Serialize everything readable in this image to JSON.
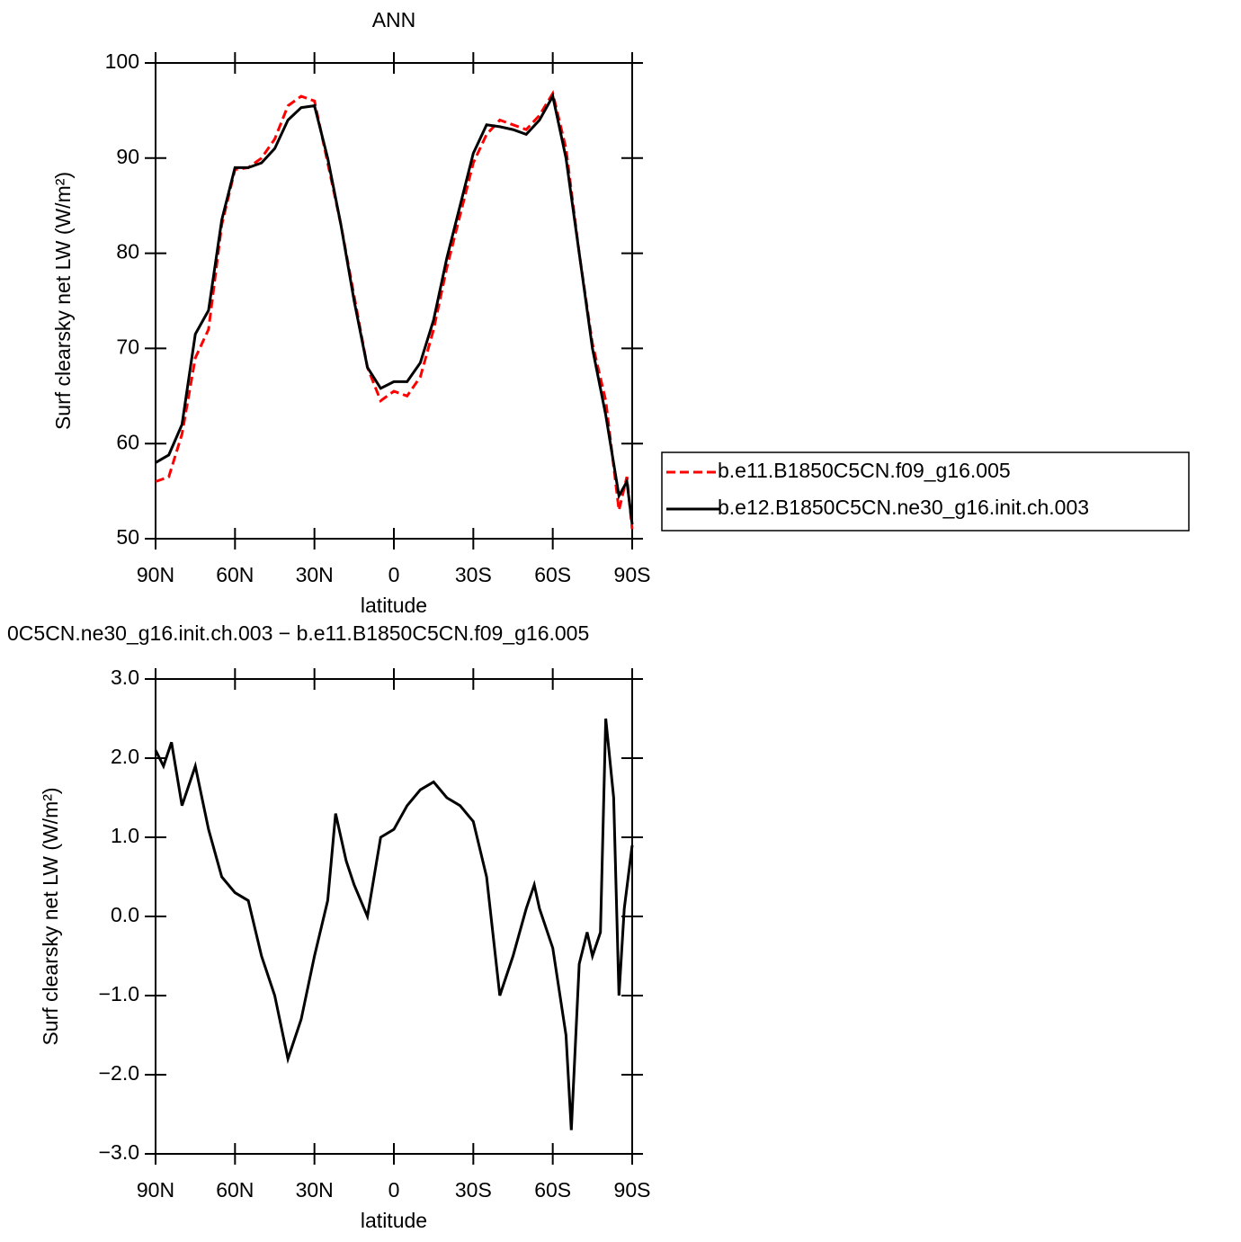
{
  "chart_data": [
    {
      "type": "line",
      "title": "ANN",
      "xlabel": "latitude",
      "ylabel": "Surf clearsky net LW (W/m²)",
      "x": [
        90,
        85,
        80,
        75,
        70,
        65,
        60,
        55,
        50,
        45,
        40,
        35,
        30,
        25,
        20,
        15,
        10,
        5,
        0,
        -5,
        -10,
        -15,
        -20,
        -25,
        -30,
        -35,
        -40,
        -45,
        -50,
        -55,
        -60,
        -65,
        -70,
        -75,
        -80,
        -85,
        -88,
        -90
      ],
      "series": [
        {
          "name": "b.e11.B1850C5CN.f09_g16.005",
          "color": "#ff0000",
          "dash": true,
          "values": [
            56,
            56.5,
            61,
            69,
            72,
            83,
            88.8,
            89,
            90,
            92,
            95.5,
            96.5,
            96,
            89.5,
            83,
            75.5,
            68,
            64.5,
            65.5,
            65,
            67,
            72,
            78.5,
            84,
            89.5,
            92.5,
            94,
            93.5,
            93,
            94.5,
            96.8,
            91,
            80,
            70.5,
            64.5,
            53,
            56.5,
            51
          ]
        },
        {
          "name": "b.e12.B1850C5CN.ne30_g16.init.ch.003",
          "color": "#000000",
          "dash": false,
          "values": [
            58,
            58.8,
            62,
            71.5,
            74,
            83.5,
            89,
            89,
            89.5,
            91,
            94,
            95.3,
            95.5,
            90,
            83,
            75,
            68,
            65.8,
            66.5,
            66.5,
            68.5,
            73,
            79.5,
            85,
            90.5,
            93.5,
            93.3,
            93,
            92.5,
            94,
            96.5,
            90,
            80,
            70,
            63,
            54.5,
            56,
            51.5
          ]
        }
      ],
      "xlim": [
        90,
        -90
      ],
      "xticks": [
        {
          "value": 90,
          "label": "90N"
        },
        {
          "value": 60,
          "label": "60N"
        },
        {
          "value": 30,
          "label": "30N"
        },
        0,
        {
          "value": -30,
          "label": "30S"
        },
        {
          "value": -60,
          "label": "60S"
        },
        {
          "value": -90,
          "label": "90S"
        }
      ],
      "ylim": [
        50,
        100
      ],
      "yticks": [
        50,
        60,
        70,
        80,
        90,
        100
      ],
      "legend": "right"
    },
    {
      "type": "line",
      "title": "0C5CN.ne30_g16.init.ch.003 − b.e11.B1850C5CN.f09_g16.005",
      "xlabel": "latitude",
      "ylabel": "Surf clearsky net LW (W/m²)",
      "x": [
        90,
        87,
        84,
        80,
        75,
        70,
        65,
        60,
        55,
        50,
        45,
        40,
        35,
        30,
        25,
        22,
        18,
        15,
        10,
        5,
        0,
        -5,
        -10,
        -15,
        -20,
        -25,
        -30,
        -35,
        -40,
        -45,
        -50,
        -53,
        -55,
        -60,
        -65,
        -67,
        -70,
        -73,
        -75,
        -78,
        -80,
        -83,
        -85,
        -87,
        -90
      ],
      "series": [
        {
          "color": "#000000",
          "dash": false,
          "values": [
            2.1,
            1.9,
            2.2,
            1.4,
            1.9,
            1.1,
            0.5,
            0.3,
            0.2,
            -0.5,
            -1.0,
            -1.8,
            -1.3,
            -0.5,
            0.2,
            1.3,
            0.7,
            0.4,
            0.0,
            1.0,
            1.1,
            1.4,
            1.6,
            1.7,
            1.5,
            1.4,
            1.2,
            0.5,
            -1.0,
            -0.5,
            0.1,
            0.4,
            0.1,
            -0.4,
            -1.5,
            -2.7,
            -0.6,
            -0.2,
            -0.5,
            -0.2,
            2.5,
            1.5,
            -1.0,
            0.1,
            0.9
          ]
        }
      ],
      "xlim": [
        90,
        -90
      ],
      "xticks": [
        {
          "value": 90,
          "label": "90N"
        },
        {
          "value": 60,
          "label": "60N"
        },
        {
          "value": 30,
          "label": "30N"
        },
        0,
        {
          "value": -30,
          "label": "30S"
        },
        {
          "value": -60,
          "label": "60S"
        },
        {
          "value": -90,
          "label": "90S"
        }
      ],
      "ylim": [
        -3,
        3
      ],
      "yticks": [
        {
          "value": -3,
          "label": "−3.0"
        },
        {
          "value": -2,
          "label": "−2.0"
        },
        {
          "value": -1,
          "label": "−1.0"
        },
        {
          "value": 0,
          "label": "0.0"
        },
        {
          "value": 1,
          "label": "1.0"
        },
        {
          "value": 2,
          "label": "2.0"
        },
        {
          "value": 3,
          "label": "3.0"
        }
      ]
    }
  ]
}
